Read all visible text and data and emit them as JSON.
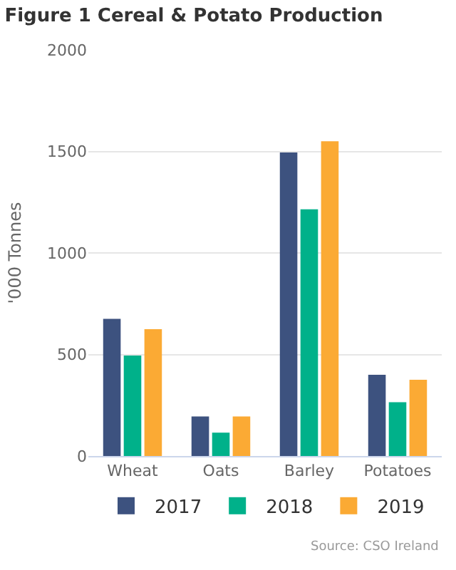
{
  "chart_data": {
    "type": "bar",
    "title": "Figure 1 Cereal & Potato Production",
    "ylabel": "'000 Tonnes",
    "categories": [
      "Wheat",
      "Oats",
      "Barley",
      "Potatoes"
    ],
    "series": [
      {
        "name": "2017",
        "color": "#3d527f",
        "values": [
          675,
          195,
          1495,
          400
        ]
      },
      {
        "name": "2018",
        "color": "#00b18a",
        "values": [
          495,
          115,
          1215,
          265
        ]
      },
      {
        "name": "2019",
        "color": "#fbaa34",
        "values": [
          625,
          195,
          1550,
          375
        ]
      }
    ],
    "ylim": [
      0,
      2000
    ],
    "yticks": [
      0,
      500,
      1000,
      1500,
      2000
    ],
    "grid": "y",
    "legend": "bottom",
    "annotations": [
      "Source: CSO Ireland"
    ]
  }
}
